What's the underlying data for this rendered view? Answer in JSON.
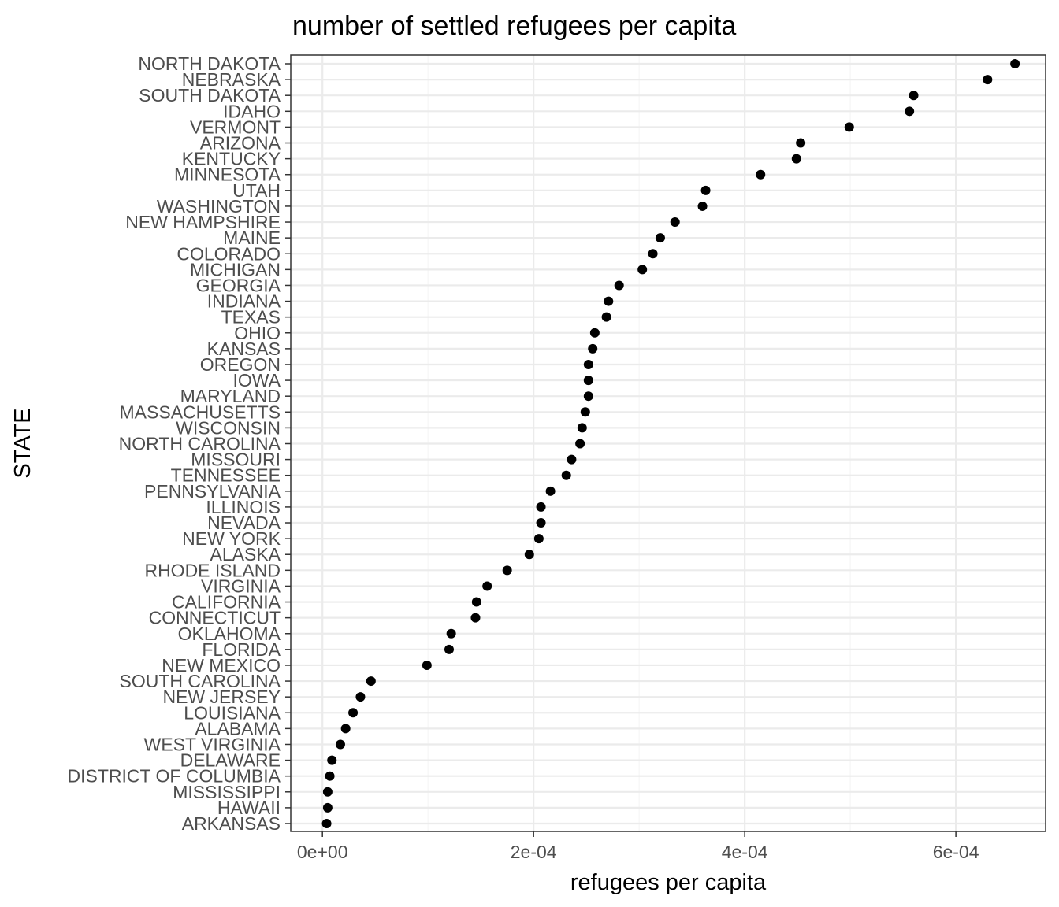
{
  "chart_data": {
    "type": "scatter",
    "title": "number of settled refugees per capita",
    "xlabel": "refugees per capita",
    "ylabel": "STATE",
    "xlim": [
      -3e-05,
      0.000685
    ],
    "x_ticks": [
      0,
      0.0002,
      0.0004,
      0.0006
    ],
    "x_tick_labels": [
      "0e+00",
      "2e-04",
      "4e-04",
      "6e-04"
    ],
    "grid": true,
    "theme": "bw",
    "point_color": "#000000",
    "categories": [
      "NORTH DAKOTA",
      "NEBRASKA",
      "SOUTH DAKOTA",
      "IDAHO",
      "VERMONT",
      "ARIZONA",
      "KENTUCKY",
      "MINNESOTA",
      "UTAH",
      "WASHINGTON",
      "NEW HAMPSHIRE",
      "MAINE",
      "COLORADO",
      "MICHIGAN",
      "GEORGIA",
      "INDIANA",
      "TEXAS",
      "OHIO",
      "KANSAS",
      "OREGON",
      "IOWA",
      "MARYLAND",
      "MASSACHUSETTS",
      "WISCONSIN",
      "NORTH CAROLINA",
      "MISSOURI",
      "TENNESSEE",
      "PENNSYLVANIA",
      "ILLINOIS",
      "NEVADA",
      "NEW YORK",
      "ALASKA",
      "RHODE ISLAND",
      "VIRGINIA",
      "CALIFORNIA",
      "CONNECTICUT",
      "OKLAHOMA",
      "FLORIDA",
      "NEW MEXICO",
      "SOUTH CAROLINA",
      "NEW JERSEY",
      "LOUISIANA",
      "ALABAMA",
      "WEST VIRGINIA",
      "DELAWARE",
      "DISTRICT OF COLUMBIA",
      "MISSISSIPPI",
      "HAWAII",
      "ARKANSAS"
    ],
    "values": [
      0.000656,
      0.00063,
      0.00056,
      0.000556,
      0.000499,
      0.000453,
      0.000449,
      0.000415,
      0.000363,
      0.00036,
      0.000334,
      0.00032,
      0.000313,
      0.000303,
      0.000281,
      0.000271,
      0.000269,
      0.000258,
      0.000256,
      0.000252,
      0.000252,
      0.000252,
      0.000249,
      0.000246,
      0.000244,
      0.000236,
      0.000231,
      0.000216,
      0.000207,
      0.000207,
      0.000205,
      0.000196,
      0.000175,
      0.000156,
      0.000146,
      0.000145,
      0.000122,
      0.00012,
      9.9e-05,
      4.6e-05,
      3.6e-05,
      2.9e-05,
      2.2e-05,
      1.7e-05,
      9e-06,
      7e-06,
      5e-06,
      5e-06,
      4e-06
    ]
  }
}
